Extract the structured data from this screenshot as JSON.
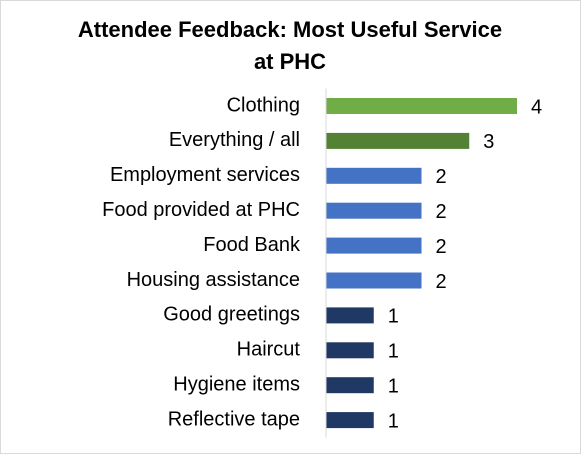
{
  "chart_data": {
    "type": "hbar",
    "title": "Attendee Feedback: Most Useful Service at PHC",
    "categories": [
      "Clothing",
      "Everything / all",
      "Employment services",
      "Food provided at PHC",
      "Food Bank",
      "Housing assistance",
      "Good greetings",
      "Haircut",
      "Hygiene items",
      "Reflective tape"
    ],
    "values": [
      4,
      3,
      2,
      2,
      2,
      2,
      1,
      1,
      1,
      1
    ],
    "colors": [
      "#70ad47",
      "#548235",
      "#4472c4",
      "#4472c4",
      "#4472c4",
      "#4472c4",
      "#203864",
      "#203864",
      "#203864",
      "#203864"
    ],
    "xlim": [
      0,
      4
    ]
  }
}
